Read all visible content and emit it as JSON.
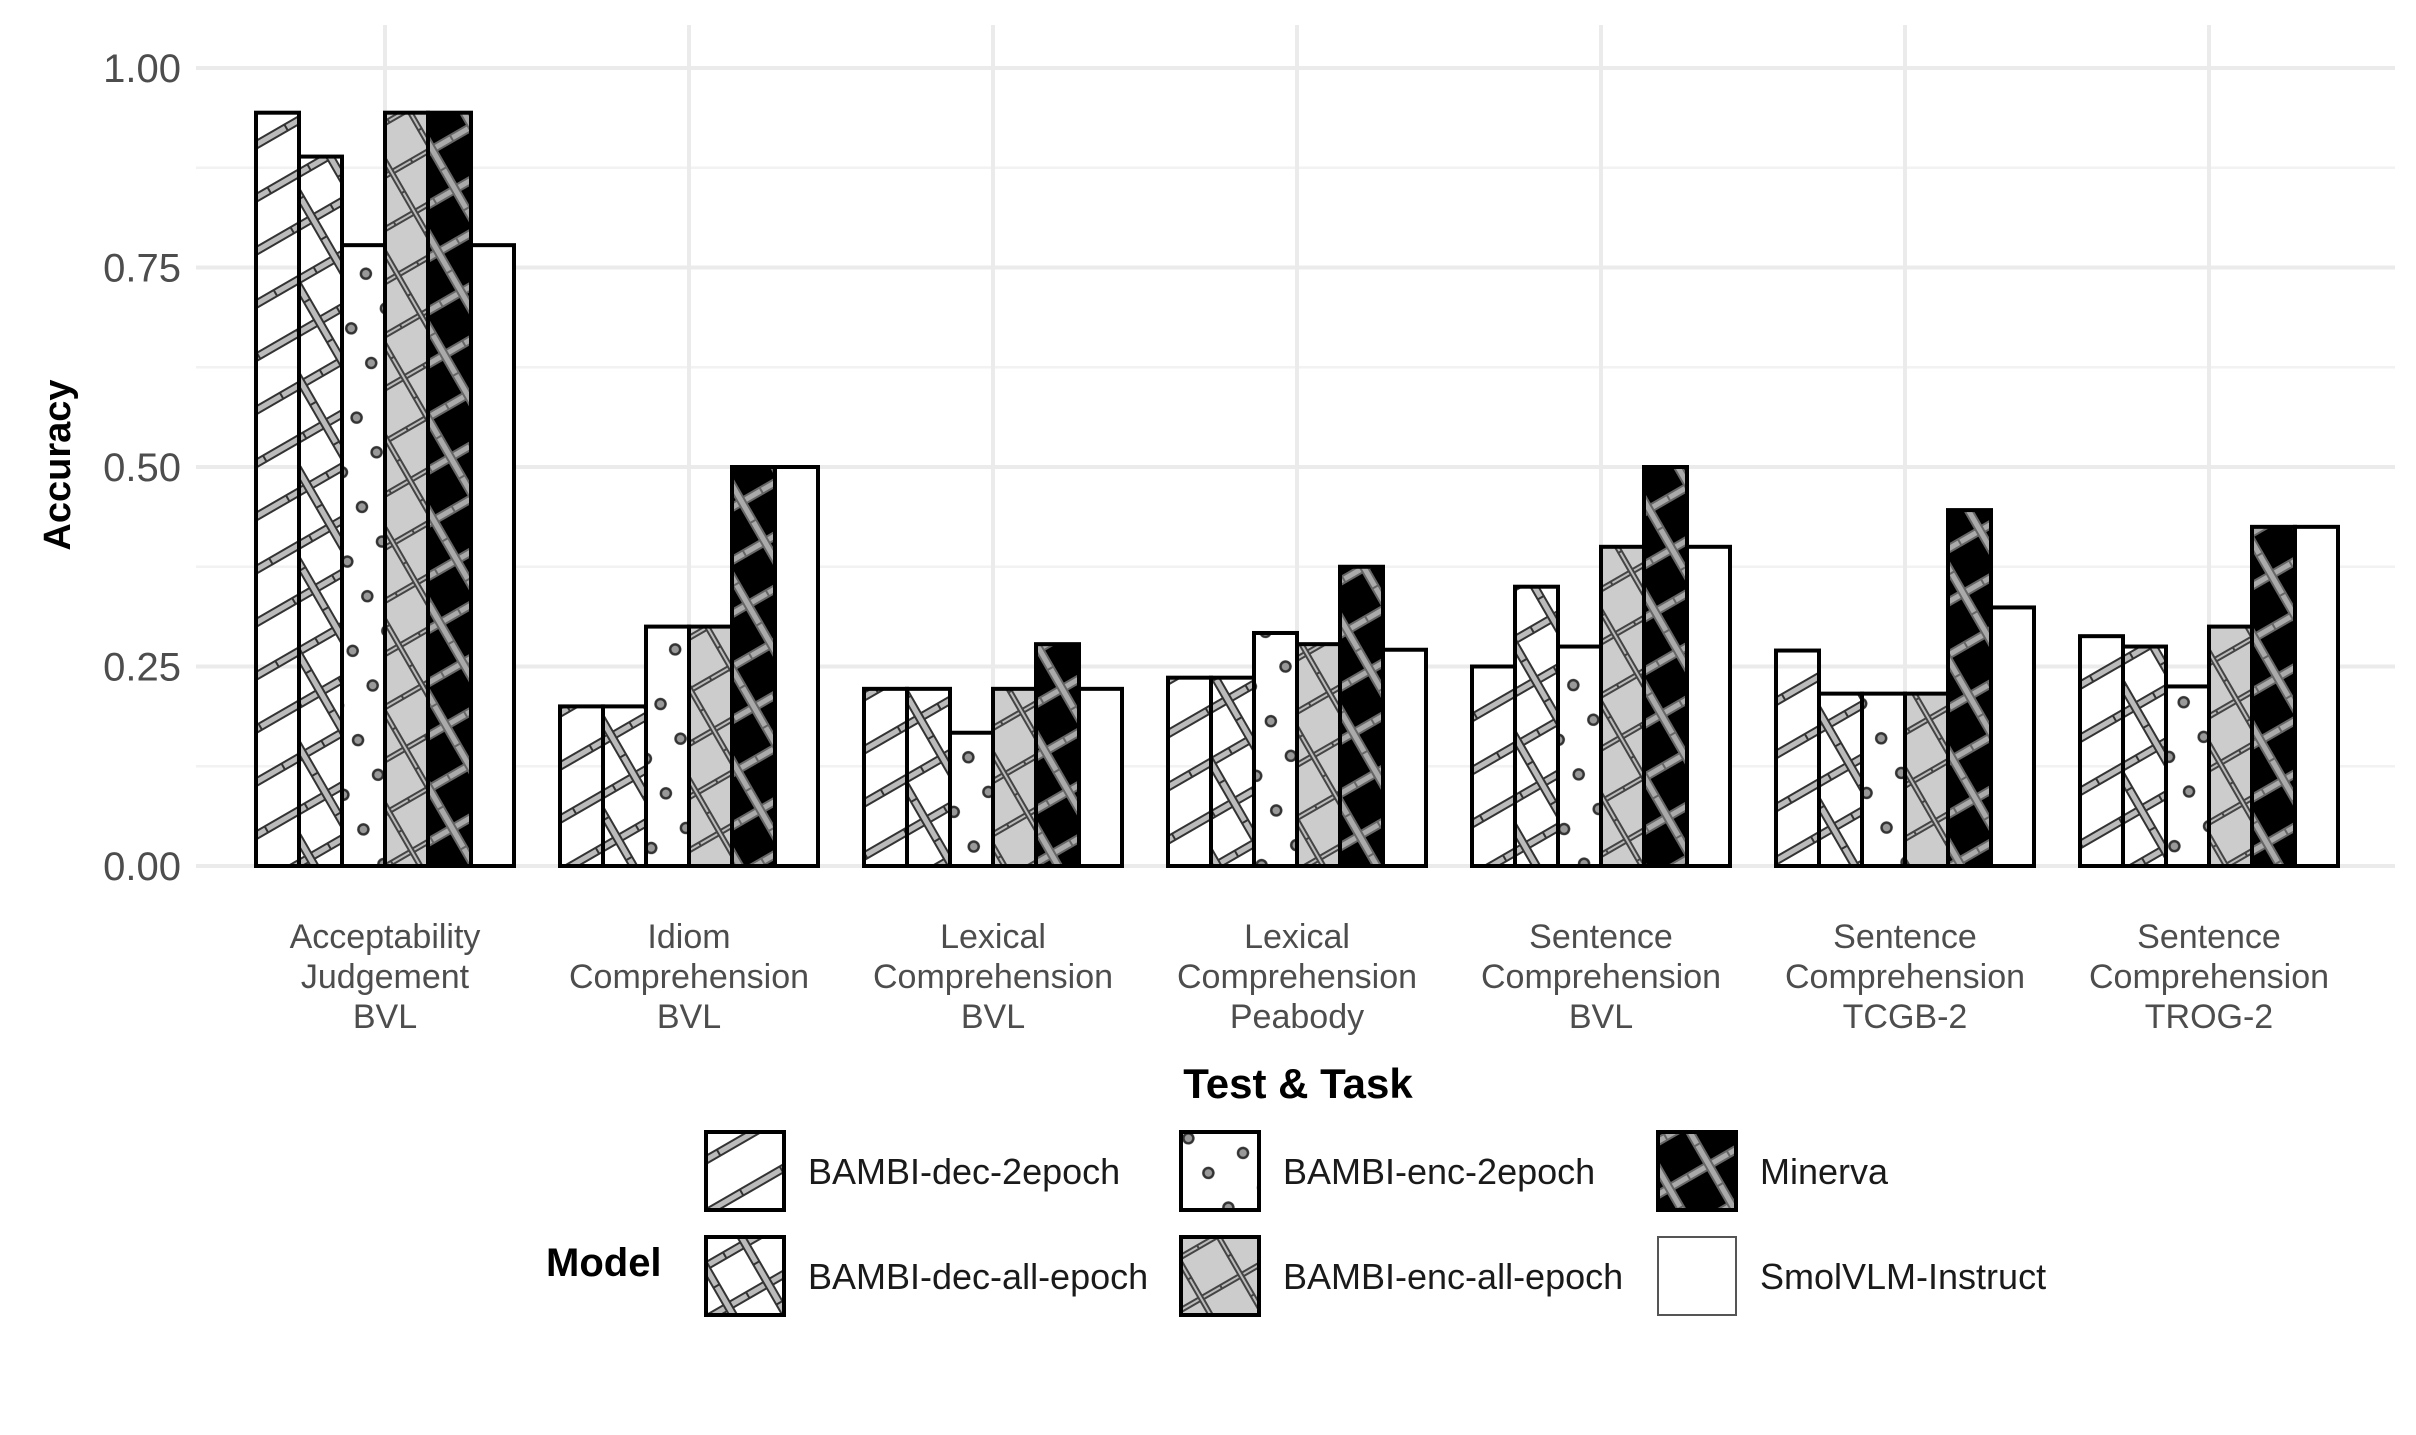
{
  "chart_data": {
    "type": "bar",
    "xlabel": "Test & Task",
    "ylabel": "Accuracy",
    "ylim": [
      0,
      1.0
    ],
    "yticks": [
      "0.00",
      "0.25",
      "0.50",
      "0.75",
      "1.00"
    ],
    "grid": true,
    "legend_position": "bottom",
    "legend_title": "Model",
    "categories": [
      [
        "Acceptability",
        "Judgement",
        "BVL"
      ],
      [
        "Idiom",
        "Comprehension",
        "BVL"
      ],
      [
        "Lexical",
        "Comprehension",
        "BVL"
      ],
      [
        "Lexical",
        "Comprehension",
        "Peabody"
      ],
      [
        "Sentence",
        "Comprehension",
        "BVL"
      ],
      [
        "Sentence",
        "Comprehension",
        "TCGB-2"
      ],
      [
        "Sentence",
        "Comprehension",
        "TROG-2"
      ]
    ],
    "series": [
      {
        "name": "BAMBI-dec-2epoch",
        "fill": "#ffffff",
        "pattern": "stripe",
        "values": [
          0.944,
          0.2,
          0.222,
          0.236,
          0.25,
          0.27,
          0.288
        ]
      },
      {
        "name": "BAMBI-dec-all-epoch",
        "fill": "#ffffff",
        "pattern": "crosshatch",
        "values": [
          0.889,
          0.2,
          0.222,
          0.236,
          0.35,
          0.216,
          0.275
        ]
      },
      {
        "name": "BAMBI-enc-2epoch",
        "fill": "#ffffff",
        "pattern": "dots",
        "values": [
          0.778,
          0.3,
          0.167,
          0.292,
          0.275,
          0.216,
          0.225
        ]
      },
      {
        "name": "BAMBI-enc-all-epoch",
        "fill": "#cccccc",
        "pattern": "crosshatch",
        "values": [
          0.944,
          0.3,
          0.222,
          0.278,
          0.4,
          0.216,
          0.3
        ]
      },
      {
        "name": "Minerva",
        "fill": "#000000",
        "pattern": "crosshatch",
        "values": [
          0.944,
          0.5,
          0.278,
          0.375,
          0.5,
          0.446,
          0.425
        ]
      },
      {
        "name": "SmolVLM-Instruct",
        "fill": "#ffffff",
        "pattern": "none",
        "values": [
          0.778,
          0.5,
          0.222,
          0.271,
          0.4,
          0.324,
          0.425
        ]
      }
    ]
  }
}
